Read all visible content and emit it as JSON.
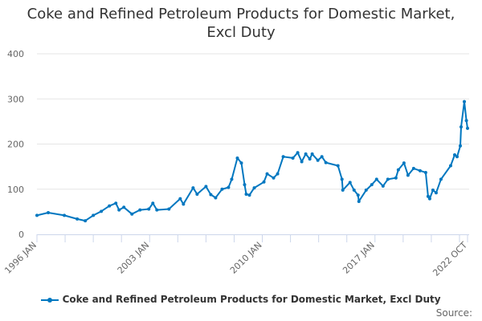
{
  "chart_data": {
    "type": "line",
    "title": "Coke and Refined Petroleum Products for Domestic Market, Excl Duty",
    "title_lines": [
      "Coke and Refined Petroleum Products for Domestic Market,",
      "Excl Duty"
    ],
    "xlabel": "",
    "ylabel": "",
    "ylim": [
      0,
      400
    ],
    "xlim": [
      1996.0,
      2022.75
    ],
    "y_ticks": [
      0,
      100,
      200,
      300,
      400
    ],
    "x_tick_labels": [
      {
        "label": "1996 JAN",
        "x": 1996.0
      },
      {
        "label": "2003 JAN",
        "x": 2003.0
      },
      {
        "label": "2010 JAN",
        "x": 2010.0
      },
      {
        "label": "2017 JAN",
        "x": 2017.0
      },
      {
        "label": "2022 OCT",
        "x": 2022.75
      }
    ],
    "grid": true,
    "legend_position": "bottom",
    "color": "#0077c0",
    "series": [
      {
        "name": "Coke and Refined Petroleum Products for Domestic Market, Excl Duty",
        "x": [
          1996.0,
          1996.7,
          1997.7,
          1998.5,
          1999.0,
          1999.5,
          2000.0,
          2000.5,
          2000.9,
          2001.1,
          2001.4,
          2001.9,
          2002.4,
          2002.95,
          2003.2,
          2003.45,
          2004.2,
          2004.9,
          2005.1,
          2005.7,
          2005.95,
          2006.5,
          2006.8,
          2007.1,
          2007.5,
          2007.9,
          2008.1,
          2008.45,
          2008.7,
          2008.9,
          2009.0,
          2009.2,
          2009.5,
          2010.1,
          2010.3,
          2010.7,
          2010.95,
          2011.3,
          2011.9,
          2012.2,
          2012.45,
          2012.7,
          2012.95,
          2013.1,
          2013.45,
          2013.7,
          2013.95,
          2014.7,
          2014.95,
          2015.0,
          2015.45,
          2015.7,
          2015.95,
          2016.0,
          2016.45,
          2016.8,
          2017.1,
          2017.5,
          2017.8,
          2018.3,
          2018.45,
          2018.8,
          2019.05,
          2019.4,
          2019.8,
          2020.15,
          2020.3,
          2020.4,
          2020.6,
          2020.8,
          2021.1,
          2021.7,
          2021.95,
          2022.1,
          2022.3,
          2022.35,
          2022.55,
          2022.68,
          2022.75
        ],
        "values": [
          42,
          48,
          42,
          34,
          30,
          42,
          51,
          63,
          69,
          54,
          60,
          45,
          54,
          56,
          69,
          54,
          56,
          79,
          67,
          103,
          89,
          106,
          88,
          81,
          100,
          104,
          122,
          169,
          158,
          110,
          89,
          87,
          103,
          116,
          134,
          125,
          134,
          172,
          169,
          181,
          161,
          178,
          167,
          178,
          164,
          172,
          159,
          152,
          122,
          98,
          115,
          98,
          87,
          73,
          98,
          110,
          122,
          107,
          122,
          125,
          143,
          158,
          131,
          146,
          141,
          137,
          84,
          79,
          98,
          92,
          122,
          152,
          176,
          172,
          196,
          238,
          294,
          252,
          235
        ]
      }
    ]
  },
  "legend": {
    "label": "Coke and Refined Petroleum Products for Domestic Market, Excl Duty"
  },
  "source": "Source:"
}
